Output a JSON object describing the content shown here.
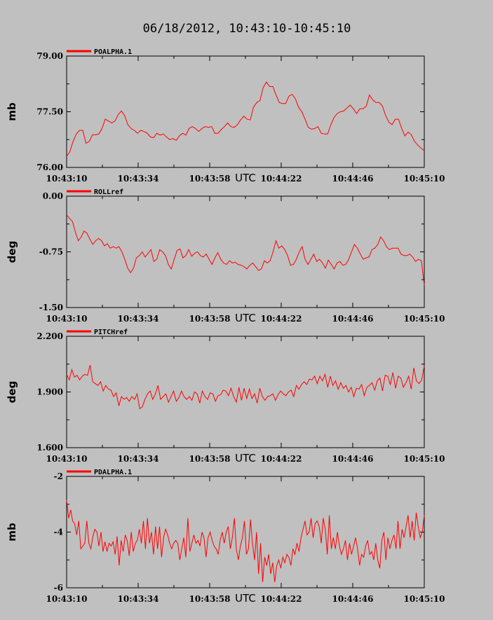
{
  "title": "06/18/2012, 10:43:10-10:45:10",
  "utc_label": "UTC",
  "colors": {
    "background": "#c0c0c0",
    "series": "#ff0000",
    "axis": "#000000"
  },
  "chart_data": [
    {
      "type": "line",
      "legend": "POALPHA.1",
      "ylabel": "mb",
      "ylim": [
        76.0,
        79.0
      ],
      "yticks": [
        "79.00",
        "77.50",
        "76.00"
      ],
      "xtick_labels": [
        "10:43:10",
        "10:43:34",
        "10:43:58",
        "10:44:22",
        "10:44:46",
        "10:45:10"
      ],
      "values": [
        76.3,
        76.42,
        76.7,
        76.9,
        77.0,
        77.0,
        76.65,
        76.7,
        76.88,
        76.88,
        76.9,
        77.05,
        77.3,
        77.25,
        77.2,
        77.25,
        77.42,
        77.52,
        77.4,
        77.15,
        77.05,
        77.0,
        76.92,
        77.0,
        76.97,
        76.92,
        76.82,
        76.8,
        76.92,
        76.87,
        76.9,
        76.82,
        76.75,
        76.78,
        76.73,
        76.85,
        76.92,
        76.87,
        77.05,
        77.1,
        77.05,
        76.97,
        77.05,
        77.1,
        77.08,
        77.1,
        76.92,
        76.92,
        77.02,
        77.1,
        77.2,
        77.1,
        77.08,
        77.15,
        77.28,
        77.38,
        77.3,
        77.28,
        77.62,
        77.75,
        77.8,
        78.15,
        78.3,
        78.18,
        78.18,
        77.95,
        77.75,
        77.72,
        77.72,
        77.92,
        77.97,
        77.85,
        77.62,
        77.5,
        77.3,
        77.08,
        77.03,
        77.05,
        77.1,
        76.92,
        76.9,
        76.9,
        77.15,
        77.35,
        77.45,
        77.5,
        77.52,
        77.6,
        77.68,
        77.58,
        77.45,
        77.58,
        77.58,
        77.65,
        77.95,
        77.82,
        77.75,
        77.75,
        77.65,
        77.4,
        77.22,
        77.15,
        77.3,
        77.3,
        77.05,
        76.85,
        76.95,
        76.88,
        76.7,
        76.6,
        76.52,
        76.45
      ]
    },
    {
      "type": "line",
      "legend": "ROLLref",
      "ylabel": "deg",
      "ylim": [
        -1.5,
        0.0
      ],
      "yticks": [
        "0.00",
        "-0.75",
        "-1.50"
      ],
      "xtick_labels": [
        "10:43:10",
        "10:43:34",
        "10:43:58",
        "10:44:22",
        "10:44:46",
        "10:45:10"
      ],
      "values": [
        -0.25,
        -0.3,
        -0.34,
        -0.48,
        -0.6,
        -0.55,
        -0.47,
        -0.5,
        -0.58,
        -0.65,
        -0.6,
        -0.57,
        -0.6,
        -0.67,
        -0.64,
        -0.7,
        -0.68,
        -0.7,
        -0.68,
        -0.75,
        -0.85,
        -0.97,
        -1.03,
        -0.97,
        -0.83,
        -0.8,
        -0.75,
        -0.82,
        -0.77,
        -0.72,
        -0.88,
        -0.85,
        -0.72,
        -0.75,
        -0.8,
        -0.92,
        -0.98,
        -0.85,
        -0.73,
        -0.71,
        -0.83,
        -0.8,
        -0.72,
        -0.81,
        -0.77,
        -0.75,
        -0.8,
        -0.82,
        -0.78,
        -0.85,
        -0.92,
        -0.83,
        -0.76,
        -0.85,
        -0.9,
        -0.92,
        -0.87,
        -0.9,
        -0.89,
        -0.92,
        -0.93,
        -0.95,
        -0.98,
        -0.93,
        -0.9,
        -0.95,
        -1.0,
        -0.98,
        -0.87,
        -0.9,
        -0.87,
        -0.75,
        -0.6,
        -0.7,
        -0.67,
        -0.72,
        -0.8,
        -0.93,
        -0.92,
        -0.85,
        -0.75,
        -0.68,
        -0.85,
        -0.92,
        -0.85,
        -0.78,
        -0.88,
        -0.85,
        -0.9,
        -0.97,
        -0.86,
        -0.92,
        -0.98,
        -0.9,
        -0.88,
        -0.93,
        -0.92,
        -0.85,
        -0.75,
        -0.65,
        -0.7,
        -0.78,
        -0.85,
        -0.83,
        -0.82,
        -0.72,
        -0.7,
        -0.65,
        -0.55,
        -0.6,
        -0.68,
        -0.72,
        -0.7,
        -0.7,
        -0.7,
        -0.78,
        -0.8,
        -0.8,
        -0.78,
        -0.82,
        -0.88,
        -0.85,
        -0.87,
        -1.2
      ]
    },
    {
      "type": "line",
      "legend": "PITCHref",
      "ylabel": "deg",
      "ylim": [
        1.6,
        2.2
      ],
      "yticks": [
        "2.200",
        "1.900",
        "1.600"
      ],
      "xtick_labels": [
        "10:43:10",
        "10:43:34",
        "10:43:58",
        "10:44:22",
        "10:44:46",
        "10:45:10"
      ],
      "values": [
        1.995,
        1.965,
        2.02,
        1.98,
        1.99,
        1.965,
        1.985,
        1.995,
        1.99,
        2.045,
        1.955,
        1.945,
        1.935,
        1.955,
        1.905,
        1.935,
        1.915,
        1.91,
        1.875,
        1.895,
        1.825,
        1.875,
        1.86,
        1.87,
        1.85,
        1.875,
        1.86,
        1.89,
        1.81,
        1.82,
        1.86,
        1.89,
        1.905,
        1.86,
        1.89,
        1.935,
        1.86,
        1.875,
        1.89,
        1.845,
        1.875,
        1.905,
        1.85,
        1.87,
        1.905,
        1.875,
        1.86,
        1.875,
        1.855,
        1.9,
        1.89,
        1.84,
        1.905,
        1.875,
        1.86,
        1.895,
        1.89,
        1.85,
        1.88,
        1.885,
        1.91,
        1.905,
        1.88,
        1.92,
        1.875,
        1.845,
        1.925,
        1.855,
        1.92,
        1.865,
        1.915,
        1.865,
        1.89,
        1.84,
        1.92,
        1.875,
        1.855,
        1.875,
        1.88,
        1.89,
        1.855,
        1.885,
        1.905,
        1.89,
        1.88,
        1.9,
        1.91,
        1.875,
        1.935,
        1.915,
        1.94,
        1.955,
        1.94,
        1.97,
        1.965,
        1.985,
        1.945,
        1.985,
        1.96,
        1.995,
        1.925,
        1.985,
        1.935,
        1.96,
        1.915,
        1.95,
        1.92,
        1.935,
        1.9,
        1.925,
        1.875,
        1.92,
        1.915,
        1.94,
        1.88,
        1.925,
        1.935,
        1.95,
        1.91,
        1.96,
        1.975,
        1.905,
        1.99,
        1.985,
        1.94,
        2.005,
        1.92,
        1.985,
        1.975,
        1.925,
        1.95,
        1.985,
        1.915,
        2.03,
        1.96,
        1.945,
        1.965,
        2.04
      ]
    },
    {
      "type": "line",
      "legend": "PDALPHA.1",
      "ylabel": "mb",
      "ylim": [
        -6,
        -2
      ],
      "yticks": [
        "-2",
        "-4",
        "-6"
      ],
      "xtick_labels": [
        "10:43:10",
        "10:43:34",
        "10:43:58",
        "10:44:22",
        "10:44:46",
        "10:45:10"
      ],
      "values": [
        -2.85,
        -3.5,
        -3.2,
        -3.6,
        -3.7,
        -4.1,
        -3.6,
        -4.6,
        -4.5,
        -4.4,
        -3.6,
        -4.4,
        -4.6,
        -4.15,
        -3.9,
        -4.0,
        -4.5,
        -4.0,
        -4.7,
        -4.35,
        -4.7,
        -4.4,
        -4.5,
        -4.35,
        -4.8,
        -4.15,
        -5.2,
        -4.3,
        -4.7,
        -4.1,
        -4.3,
        -4.85,
        -4.0,
        -4.7,
        -4.4,
        -4.3,
        -3.9,
        -4.4,
        -3.6,
        -4.6,
        -3.5,
        -4.4,
        -4.0,
        -4.8,
        -3.8,
        -4.6,
        -3.8,
        -4.9,
        -4.2,
        -3.9,
        -4.1,
        -4.4,
        -4.6,
        -4.4,
        -4.3,
        -4.4,
        -5.0,
        -4.6,
        -4.2,
        -4.9,
        -3.5,
        -4.7,
        -4.4,
        -4.1,
        -4.4,
        -4.3,
        -4.5,
        -4.0,
        -4.2,
        -4.9,
        -4.2,
        -4.0,
        -4.3,
        -4.5,
        -4.6,
        -4.8,
        -4.3,
        -4.0,
        -4.4,
        -4.0,
        -3.8,
        -4.6,
        -4.2,
        -3.5,
        -4.6,
        -5.0,
        -4.5,
        -4.2,
        -3.6,
        -4.8,
        -4.6,
        -3.55,
        -4.4,
        -5.0,
        -4.0,
        -5.5,
        -4.4,
        -5.8,
        -4.9,
        -5.2,
        -4.8,
        -5.5,
        -5.1,
        -5.8,
        -5.2,
        -5.0,
        -5.3,
        -4.9,
        -5.1,
        -4.8,
        -4.9,
        -5.2,
        -4.6,
        -4.8,
        -4.4,
        -4.7,
        -4.2,
        -3.9,
        -3.6,
        -4.1,
        -4.0,
        -3.5,
        -4.2,
        -3.7,
        -3.6,
        -3.8,
        -4.4,
        -3.5,
        -3.9,
        -4.8,
        -3.4,
        -4.6,
        -4.2,
        -4.6,
        -4.0,
        -4.5,
        -4.8,
        -4.6,
        -4.3,
        -5.0,
        -4.4,
        -4.8,
        -4.5,
        -4.2,
        -4.6,
        -5.2,
        -4.8,
        -4.9,
        -4.5,
        -4.3,
        -4.8,
        -4.7,
        -5.0,
        -4.4,
        -5.0,
        -5.3,
        -4.3,
        -4.0,
        -5.0,
        -4.2,
        -4.6,
        -4.3,
        -4.1,
        -4.6,
        -3.6,
        -4.6,
        -3.9,
        -4.2,
        -3.8,
        -3.4,
        -4.2,
        -3.6,
        -4.3,
        -3.3,
        -3.8,
        -4.2,
        -4.0,
        -3.4
      ]
    }
  ]
}
